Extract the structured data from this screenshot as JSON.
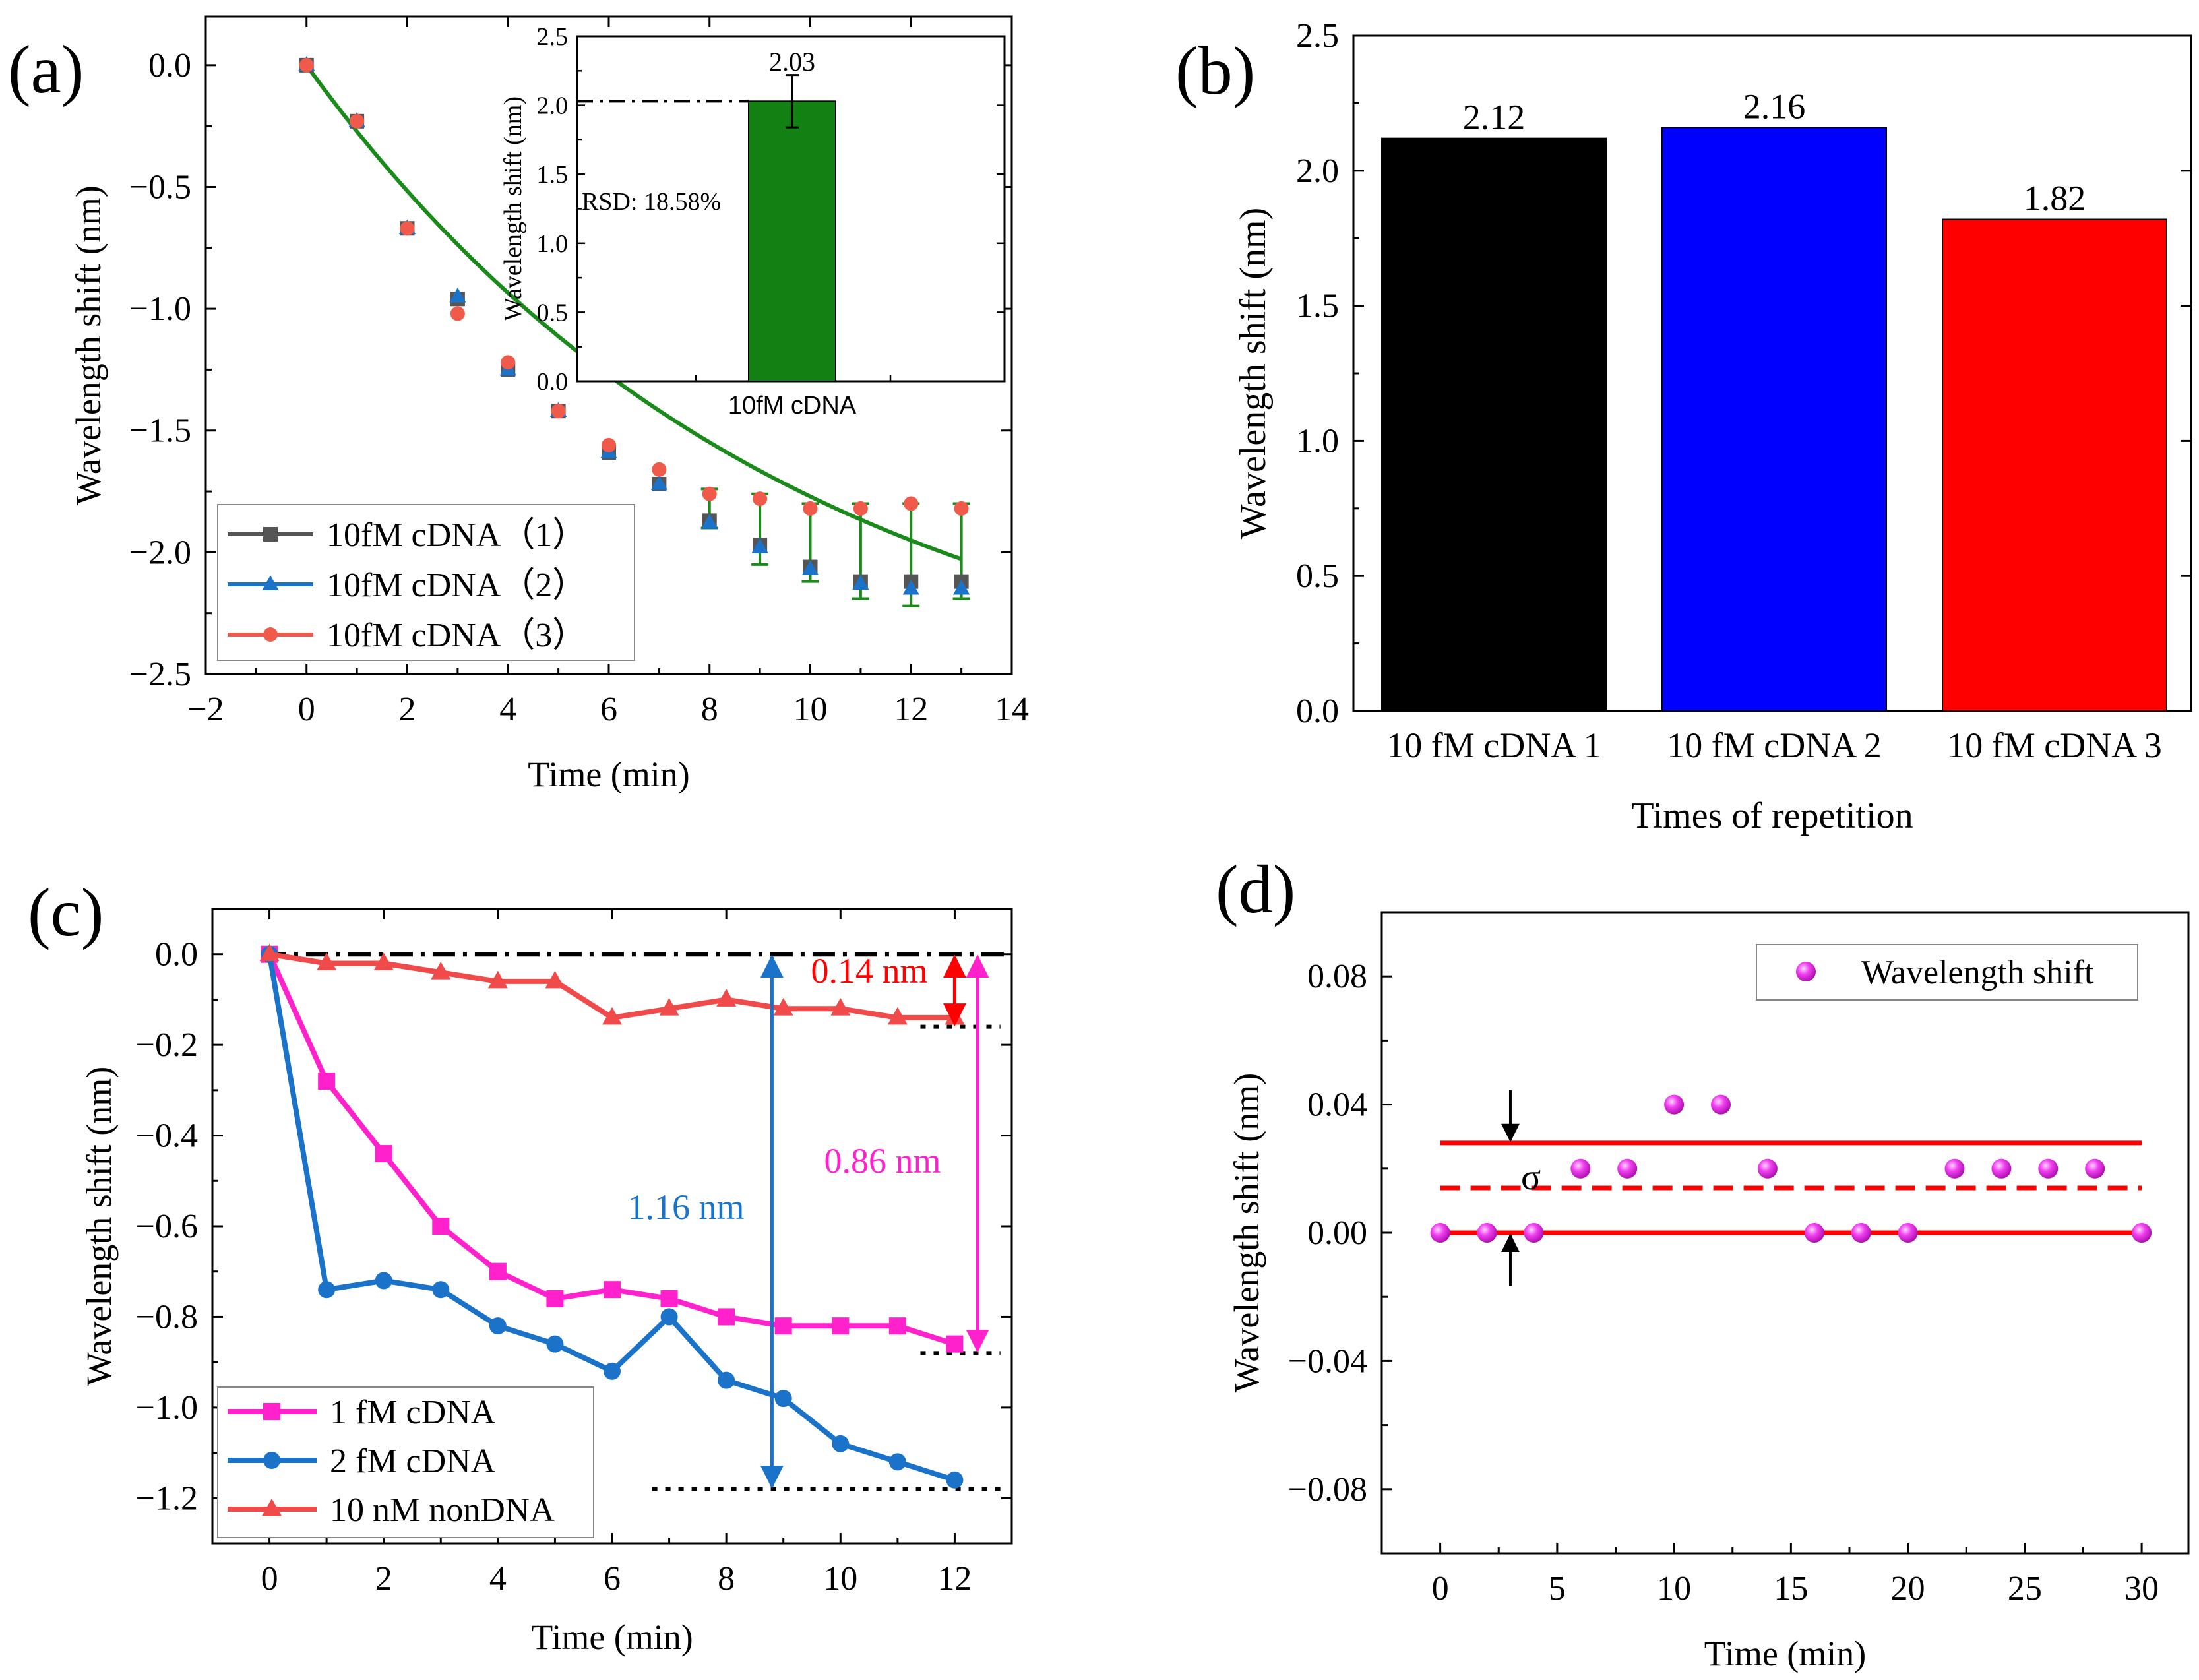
{
  "chart_data": [
    {
      "panel": "(a)",
      "type": "scatter",
      "xlabel": "Time (min)",
      "ylabel": "Wavelength shift (nm)",
      "xlim": [
        -2,
        14
      ],
      "ylim": [
        -2.5,
        0.2
      ],
      "xticks": [
        "−2",
        "0",
        "2",
        "4",
        "6",
        "8",
        "10",
        "12",
        "14"
      ],
      "yticks": [
        "0.0",
        "−0.5",
        "−1.0",
        "−1.5",
        "−2.0",
        "−2.5"
      ],
      "x": [
        0,
        1,
        2,
        3,
        4,
        5,
        6,
        7,
        8,
        9,
        10,
        11,
        12,
        13
      ],
      "series": [
        {
          "name": "10fM cDNA（1）",
          "color": "#555555",
          "marker": "square",
          "values": [
            0,
            -0.23,
            -0.67,
            -0.96,
            -1.25,
            -1.42,
            -1.59,
            -1.72,
            -1.87,
            -1.97,
            -2.06,
            -2.12,
            -2.12,
            -2.12
          ]
        },
        {
          "name": "10fM cDNA（2）",
          "color": "#1a73c9",
          "marker": "triangle",
          "values": [
            0,
            -0.23,
            -0.67,
            -0.95,
            -1.25,
            -1.42,
            -1.59,
            -1.72,
            -1.88,
            -1.98,
            -2.07,
            -2.13,
            -2.15,
            -2.15
          ]
        },
        {
          "name": "10fM cDNA（3）",
          "color": "#f05a4a",
          "marker": "circle",
          "values": [
            0,
            -0.23,
            -0.67,
            -1.02,
            -1.22,
            -1.42,
            -1.56,
            -1.66,
            -1.76,
            -1.78,
            -1.82,
            -1.82,
            -1.8,
            -1.82
          ]
        }
      ],
      "fit": {
        "color": "#1a8a1a",
        "a": 2.72,
        "tau": 9.5,
        "x_max": 13
      },
      "error_bars": {
        "x": [
          8,
          9,
          10,
          11,
          12,
          13
        ],
        "low": [
          -1.9,
          -2.05,
          -2.12,
          -2.19,
          -2.22,
          -2.19
        ],
        "high": [
          -1.74,
          -1.76,
          -1.8,
          -1.8,
          -1.8,
          -1.8
        ]
      },
      "inset": {
        "type": "bar",
        "category": "10fM cDNA",
        "value": 2.03,
        "value_label": "2.03",
        "error": [
          1.84,
          2.22
        ],
        "ylim": [
          0,
          2.5
        ],
        "yticks": [
          "0.0",
          "0.5",
          "1.0",
          "1.5",
          "2.0",
          "2.5"
        ],
        "ylabel": "Wavelength shift (nm)",
        "annotation": "RSD: 18.58%",
        "bar_color": "#128012"
      }
    },
    {
      "panel": "(b)",
      "type": "bar",
      "xlabel": "Times of repetition",
      "ylabel": "Wavelength shift (nm)",
      "categories": [
        "10 fM cDNA 1",
        "10 fM cDNA 2",
        "10 fM cDNA 3"
      ],
      "values": [
        2.12,
        2.16,
        1.82
      ],
      "value_labels": [
        "2.12",
        "2.16",
        "1.82"
      ],
      "colors": [
        "#000000",
        "#0000ff",
        "#ff0000"
      ],
      "ylim": [
        0,
        2.5
      ],
      "yticks": [
        "0.0",
        "0.5",
        "1.0",
        "1.5",
        "2.0",
        "2.5"
      ]
    },
    {
      "panel": "(c)",
      "type": "line",
      "xlabel": "Time (min)",
      "ylabel": "Wavelength shift (nm)",
      "xlim": [
        -1,
        13
      ],
      "ylim": [
        -1.3,
        0.1
      ],
      "xticks": [
        "0",
        "2",
        "4",
        "6",
        "8",
        "10",
        "12"
      ],
      "yticks": [
        "0.0",
        "−0.2",
        "−0.4",
        "−0.6",
        "−0.8",
        "−1.0",
        "−1.2"
      ],
      "x": [
        0,
        1,
        2,
        3,
        4,
        5,
        6,
        7,
        8,
        9,
        10,
        11,
        12
      ],
      "series": [
        {
          "name": "1 fM cDNA",
          "color": "#ff22cc",
          "marker": "square",
          "values": [
            0,
            -0.28,
            -0.44,
            -0.6,
            -0.7,
            -0.76,
            -0.74,
            -0.76,
            -0.8,
            -0.82,
            -0.82,
            -0.82,
            -0.86
          ]
        },
        {
          "name": "2 fM cDNA",
          "color": "#1a73c9",
          "marker": "circle",
          "values": [
            0,
            -0.74,
            -0.72,
            -0.74,
            -0.82,
            -0.86,
            -0.92,
            -0.8,
            -0.94,
            -0.98,
            -1.08,
            -1.12,
            -1.16
          ]
        },
        {
          "name": "10 nM nonDNA",
          "color": "#f04a4a",
          "marker": "triangle",
          "values": [
            0,
            -0.02,
            -0.02,
            -0.04,
            -0.06,
            -0.06,
            -0.14,
            -0.12,
            -0.1,
            -0.12,
            -0.12,
            -0.14,
            -0.14
          ]
        }
      ],
      "reference_lines": [
        {
          "y": 0.0,
          "x_from": -0.1,
          "x_to": 13,
          "style": "dash-dot"
        },
        {
          "y": -0.16,
          "x_from": 11.4,
          "x_to": 12.8,
          "style": "dot"
        },
        {
          "y": -0.88,
          "x_from": 11.4,
          "x_to": 12.8,
          "style": "dot"
        },
        {
          "y": -1.18,
          "x_from": 6.7,
          "x_to": 12.8,
          "style": "dot"
        }
      ],
      "annotations": [
        {
          "text": "0.14 nm",
          "color": "#ff0000",
          "x": 12.0,
          "y_top": 0.0,
          "y_bottom": -0.16
        },
        {
          "text": "0.86 nm",
          "color": "#ff22cc",
          "x": 12.4,
          "y_top": 0.0,
          "y_bottom": -0.88
        },
        {
          "text": "1.16 nm",
          "color": "#1a73c9",
          "x": 8.8,
          "y_top": 0.0,
          "y_bottom": -1.18
        }
      ]
    },
    {
      "panel": "(d)",
      "type": "scatter",
      "xlabel": "Time (min)",
      "ylabel": "Wavelength shift (nm)",
      "xlim": [
        -2.5,
        32
      ],
      "ylim": [
        -0.1,
        0.1
      ],
      "xticks": [
        "0",
        "5",
        "10",
        "15",
        "20",
        "25",
        "30"
      ],
      "yticks": [
        "0.08",
        "0.04",
        "0.00",
        "−0.04",
        "−0.08"
      ],
      "x": [
        0,
        2,
        4,
        6,
        8,
        10,
        12,
        14,
        16,
        18,
        20,
        22,
        24,
        26,
        28,
        30
      ],
      "series": [
        {
          "name": "Wavelength shift",
          "color": "#ee33ee",
          "marker": "sphere",
          "values": [
            0,
            0,
            0,
            0.02,
            0.02,
            0.04,
            0.04,
            0.02,
            0,
            0,
            0,
            0.02,
            0.02,
            0.02,
            0.02,
            0
          ]
        }
      ],
      "reference_lines": [
        {
          "y": 0.028,
          "x_from": 0,
          "x_to": 30,
          "style": "solid",
          "color": "#ff0000"
        },
        {
          "y": 0.014,
          "x_from": 0,
          "x_to": 30,
          "style": "dash",
          "color": "#ff0000"
        },
        {
          "y": 0.0,
          "x_from": 0,
          "x_to": 30,
          "style": "solid",
          "color": "#ff0000"
        }
      ],
      "sigma": {
        "label": "σ",
        "x": 3.0,
        "y_top": 0.028,
        "y_bottom": 0.0
      }
    }
  ]
}
